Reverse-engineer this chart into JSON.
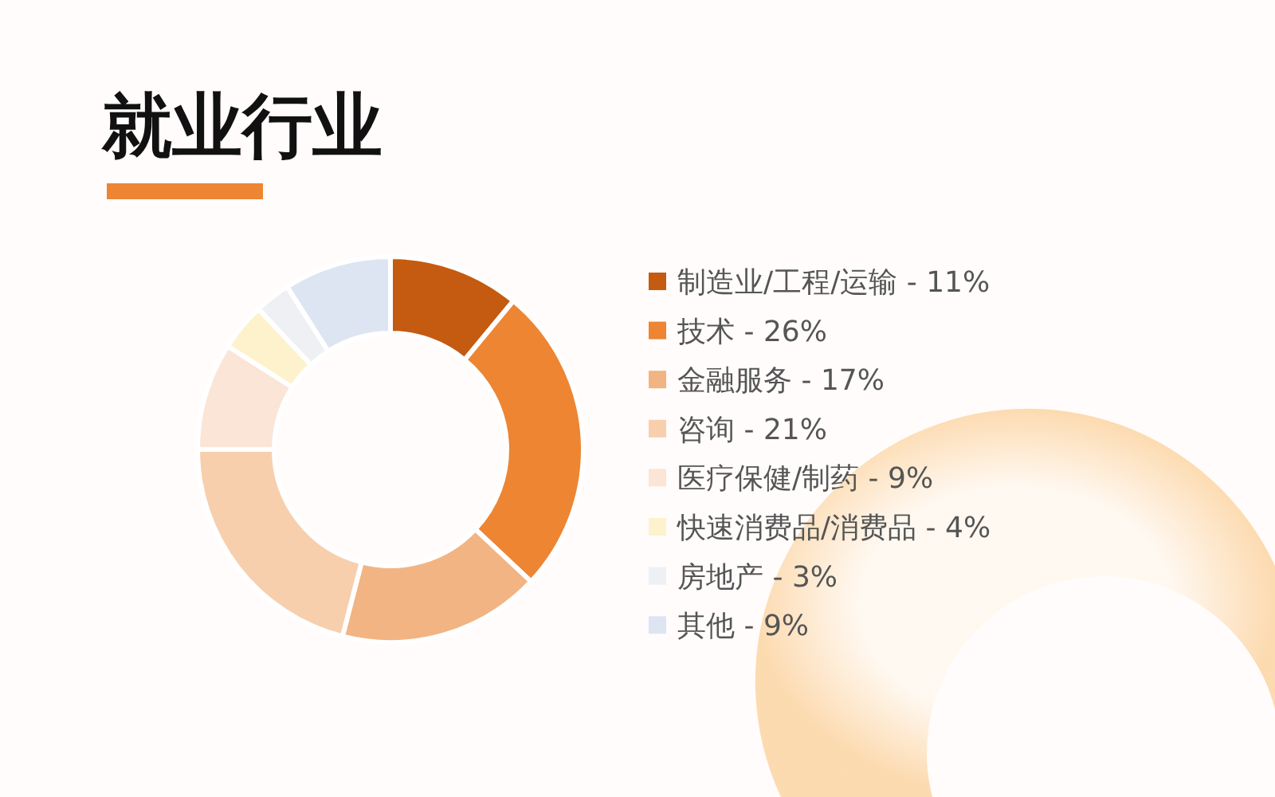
{
  "chart_data": {
    "type": "donut",
    "title": "就业行业",
    "categories": [
      "制造业/工程/运输 - 11%",
      "技术 - 26%",
      "金融服务 - 17%",
      "咨询 - 21%",
      "医疗保健/制药 - 9%",
      "快速消费品/消费品 - 4%",
      "房地产 - 3%",
      "其他 - 9%"
    ],
    "values": [
      11,
      26,
      17,
      21,
      9,
      4,
      3,
      9
    ],
    "colors": [
      "#c55a11",
      "#ed8533",
      "#f2b482",
      "#f7cfad",
      "#fbe5d6",
      "#fdf2cc",
      "#eef0f3",
      "#dee5f2"
    ],
    "legend": "right"
  }
}
